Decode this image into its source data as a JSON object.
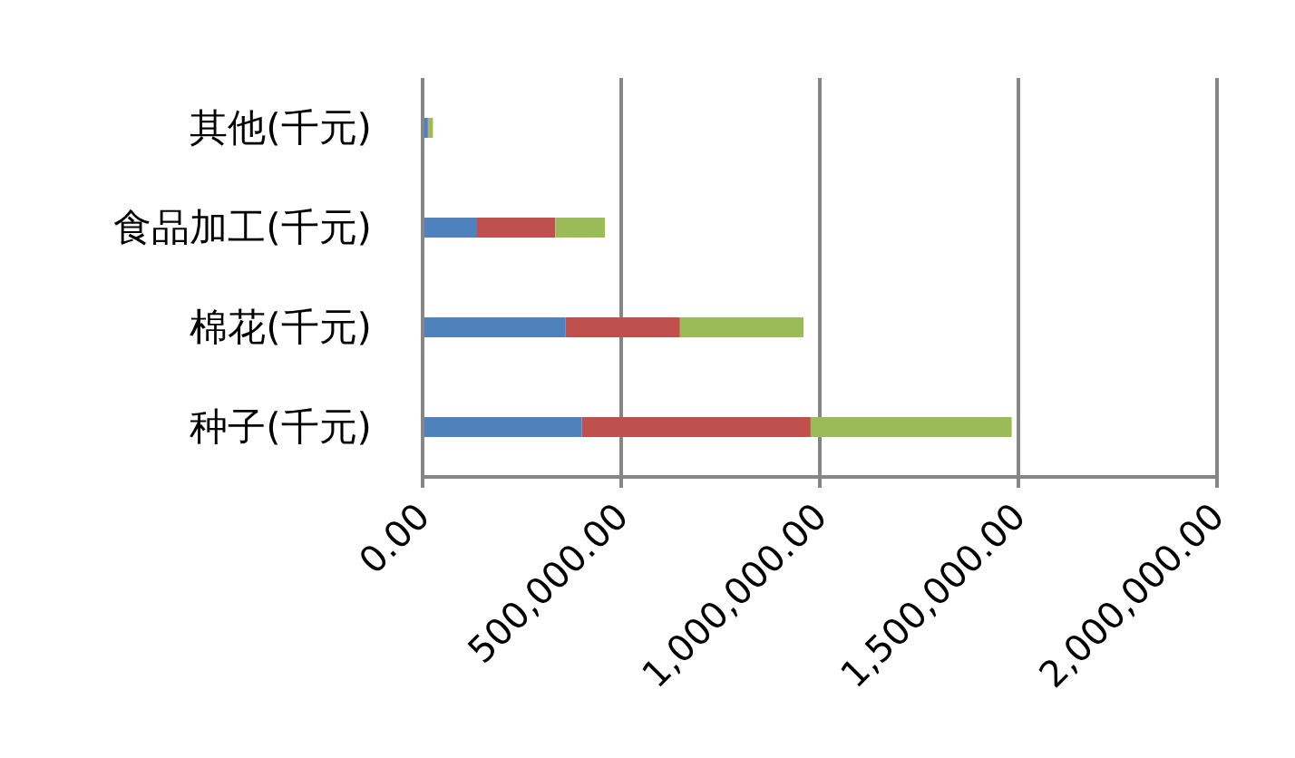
{
  "chart_data": {
    "type": "bar",
    "orientation": "horizontal",
    "stacked": true,
    "categories": [
      "其他(千元)",
      "食品加工(千元)",
      "棉花(千元)",
      "种子(千元)"
    ],
    "series": [
      {
        "color": "#4f81bd",
        "values": [
          12000,
          137000,
          360000,
          401000
        ]
      },
      {
        "color": "#c0504d",
        "values": [
          3000,
          197000,
          288000,
          576000
        ]
      },
      {
        "color": "#9bbb59",
        "values": [
          11000,
          125000,
          311000,
          506000
        ]
      }
    ],
    "xlim": [
      0,
      2000000
    ],
    "xticks": [
      {
        "value": 0,
        "label": "0.00"
      },
      {
        "value": 500000,
        "label": "500,000.00"
      },
      {
        "value": 1000000,
        "label": "1,000,000.00"
      },
      {
        "value": 1500000,
        "label": "1,500,000.00"
      },
      {
        "value": 2000000,
        "label": "2,000,000.00"
      }
    ],
    "grid": "x",
    "legend": false
  }
}
